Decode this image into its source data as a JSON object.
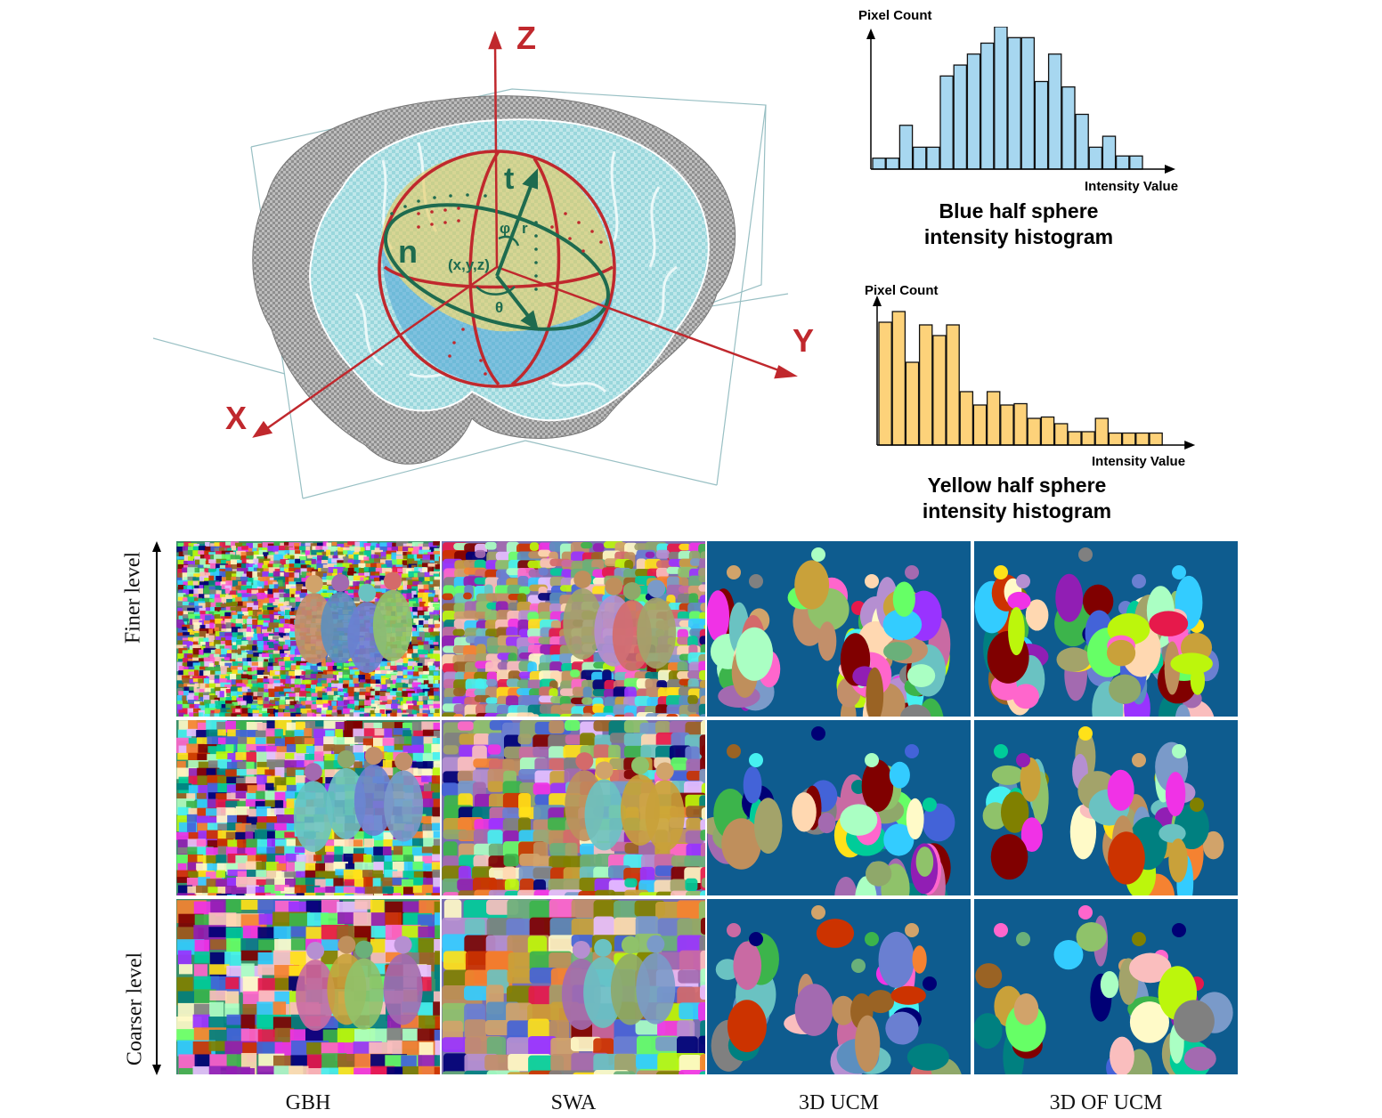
{
  "diagram": {
    "axes": {
      "x": "X",
      "y": "Y",
      "z": "Z"
    },
    "symbols": {
      "tangent": "t",
      "normal": "n",
      "point": "(x,y,z)",
      "phi": "φ",
      "radius": "r",
      "theta": "θ"
    },
    "colors": {
      "axis": "#c0282d",
      "symbol": "#1e6b4f",
      "sphere_yellow": "#e8c95a",
      "sphere_blue": "#4aa3d6",
      "brain_tint": "#8fd3d6"
    }
  },
  "histograms": [
    {
      "id": "blue",
      "ylabel": "Pixel Count",
      "xlabel": "Intensity Value",
      "title_line1": "Blue half sphere",
      "title_line2": "intensity histogram",
      "color": "#a7d7f0",
      "values": [
        1,
        1,
        4,
        2,
        2,
        8.5,
        9.5,
        10.5,
        11.5,
        13,
        12,
        12,
        8,
        10.5,
        7.5,
        5,
        2,
        3,
        1.2,
        1.2
      ],
      "ymax": 13
    },
    {
      "id": "yellow",
      "ylabel": "Pixel Count",
      "xlabel": "Intensity Value",
      "title_line1": "Yellow half sphere",
      "title_line2": "intensity histogram",
      "color": "#fdd27a",
      "values": [
        9.2,
        10,
        6.2,
        9,
        8.2,
        9,
        4,
        3,
        4,
        3,
        3.1,
        2,
        2.1,
        1.6,
        1.0,
        1.0,
        2.0,
        0.9,
        0.9,
        0.9,
        0.9
      ],
      "ymax": 10
    }
  ],
  "grid": {
    "columns": [
      "GBH",
      "SWA",
      "3D UCM",
      "3D OF UCM"
    ],
    "finer_label": "Finer level",
    "coarser_label": "Coarser level",
    "background_blue": "#0e5c8f"
  }
}
